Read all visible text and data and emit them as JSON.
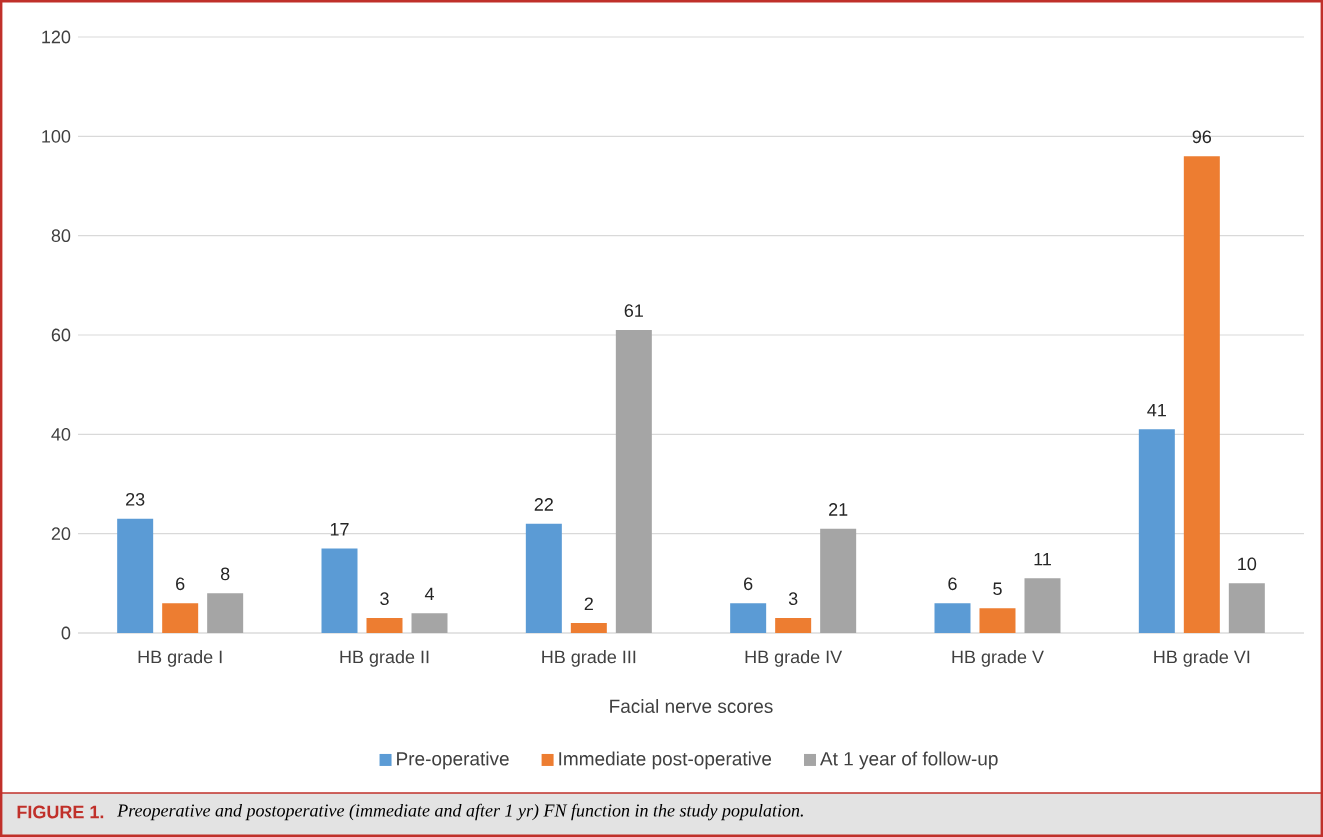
{
  "chart_data": {
    "type": "bar",
    "xlabel": "Facial nerve scores",
    "categories": [
      "HB grade I",
      "HB grade II",
      "HB grade III",
      "HB grade IV",
      "HB grade V",
      "HB grade VI"
    ],
    "series": [
      {
        "name": "Pre-operative",
        "color": "#5b9bd5",
        "values": [
          23,
          17,
          22,
          6,
          6,
          41
        ]
      },
      {
        "name": "Immediate post-operative",
        "color": "#ed7d31",
        "values": [
          6,
          3,
          2,
          3,
          5,
          96
        ]
      },
      {
        "name": "At 1 year of follow-up",
        "color": "#a5a5a5",
        "values": [
          8,
          4,
          61,
          21,
          11,
          10
        ]
      }
    ],
    "ylim": [
      0,
      120
    ],
    "yticks": [
      0,
      20,
      40,
      60,
      80,
      100,
      120
    ],
    "grid": "y",
    "legend": "bottom",
    "data_labels": true,
    "annotations": [
      "FIGURE 1.",
      "Preoperative and postoperative (immediate and after 1 yr) FN function in the study population."
    ]
  }
}
